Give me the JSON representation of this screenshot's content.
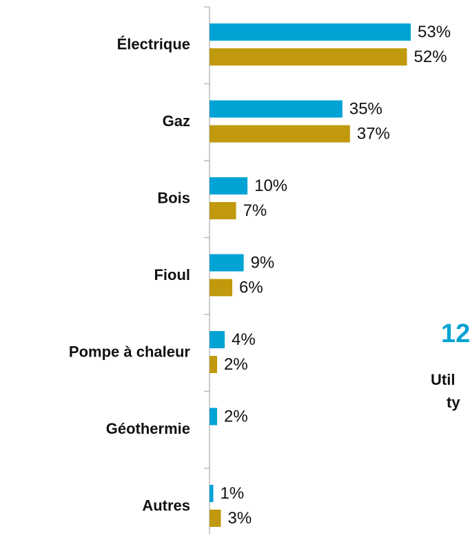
{
  "chart_data": {
    "type": "barh",
    "categories": [
      "Électrique",
      "Gaz",
      "Bois",
      "Fioul",
      "Pompe à chaleur",
      "Géothermie",
      "Autres"
    ],
    "series": [
      {
        "color": "#00a3d4",
        "values": [
          53,
          35,
          10,
          9,
          4,
          2,
          1
        ],
        "value_labels": [
          "53%",
          "35%",
          "10%",
          "9%",
          "4%",
          "2%",
          "1%"
        ]
      },
      {
        "color": "#c09a0c",
        "values": [
          52,
          37,
          7,
          6,
          2,
          null,
          3
        ],
        "value_labels": [
          "52%",
          "37%",
          "7%",
          "6%",
          "2%",
          null,
          "3%"
        ]
      }
    ],
    "annotations": [
      "12",
      "Util",
      "ty"
    ]
  }
}
